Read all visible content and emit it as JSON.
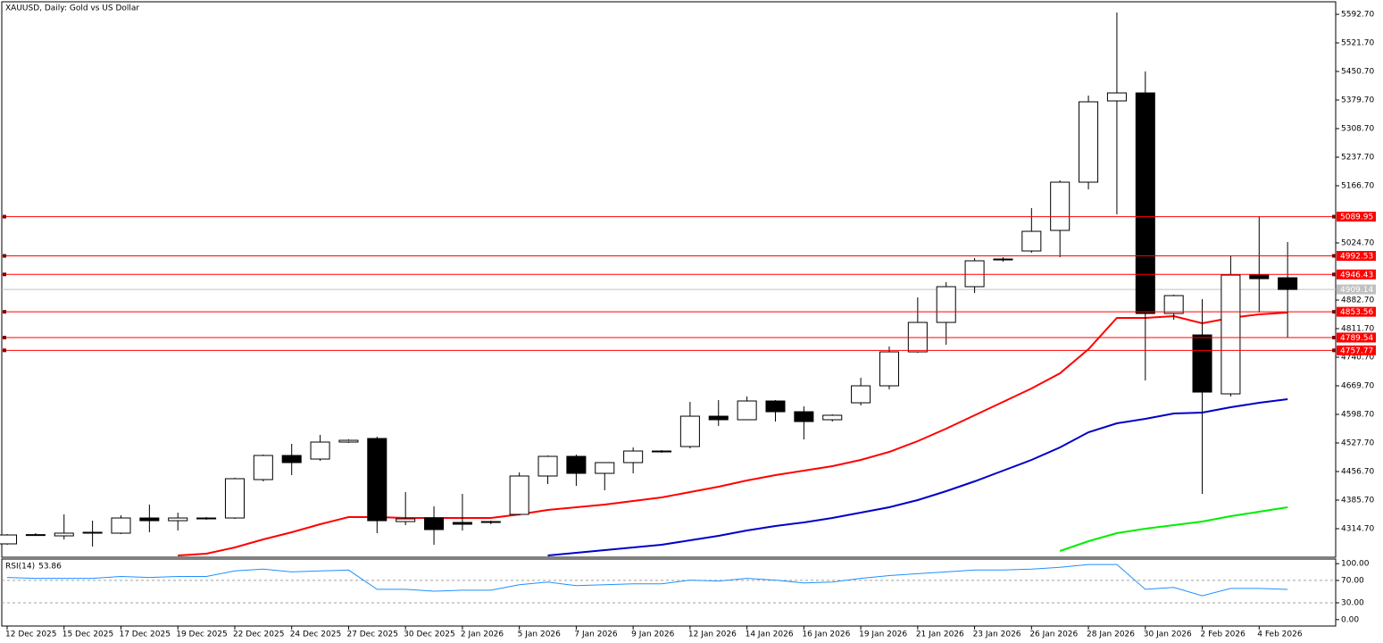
{
  "chart_data": [
    {
      "type": "candlestick",
      "title": "XAUUSD, Daily:  Gold vs US Dollar",
      "categories": [
        "12 Dec 2025",
        null,
        "15 Dec 2025",
        null,
        "17 Dec 2025",
        null,
        "19 Dec 2025",
        null,
        "22 Dec 2025",
        null,
        "24 Dec 2025",
        null,
        "27 Dec 2025",
        null,
        "30 Dec 2025",
        null,
        "2 Jan 2026",
        null,
        "5 Jan 2026",
        null,
        "7 Jan 2026",
        null,
        "9 Jan 2026",
        null,
        "12 Jan 2026",
        null,
        "14 Jan 2026",
        null,
        "16 Jan 2026",
        null,
        "19 Jan 2026",
        null,
        "21 Jan 2026",
        null,
        "23 Jan 2026",
        null,
        "26 Jan 2026",
        null,
        "28 Jan 2026",
        null,
        "30 Jan 2026",
        null,
        "2 Feb 2026",
        null,
        "4 Feb 2026",
        null
      ],
      "open": [
        4277.0,
        4299.1,
        4296.9,
        4304.0,
        4303.6,
        4341.3,
        4334.6,
        4340.5,
        4341.3,
        4436.7,
        4496.6,
        4487.7,
        4529.9,
        4538.8,
        4332.4,
        4341.3,
        4330.2,
        4331.5,
        4350.2,
        4445.6,
        4494.4,
        4452.2,
        4478.9,
        4507.0,
        4518.8,
        4594.2,
        4585.4,
        4632.0,
        4605.3,
        4585.4,
        4627.5,
        4669.7,
        4754.0,
        4827.2,
        4916.0,
        4983.5,
        5004.7,
        5055.8,
        5175.6,
        5377.5,
        5397.4,
        4849.4,
        4796.1,
        4649.7,
        4944.8,
        4938.2
      ],
      "high": [
        4301.4,
        4303.6,
        4350.2,
        4334.6,
        4347.9,
        4374.6,
        4354.6,
        4343.5,
        4441.1,
        4498.8,
        4525.5,
        4547.6,
        4536.6,
        4543.2,
        4405.6,
        4370.1,
        4401.2,
        4334.6,
        4454.5,
        4496.6,
        4498.8,
        4478.9,
        4516.6,
        4509.9,
        4629.7,
        4634.2,
        4643.1,
        4634.2,
        4618.6,
        4598.7,
        4689.6,
        4767.3,
        4889.3,
        4927.1,
        4987.0,
        4989.2,
        5111.2,
        5180.0,
        5390.8,
        5597.1,
        5450.7,
        4896.0,
        4884.9,
        4991.4,
        5091.2,
        5026.9
      ],
      "low": [
        4274.7,
        4296.9,
        4288.0,
        4270.3,
        4301.4,
        4305.8,
        4310.2,
        4336.9,
        4339.1,
        4432.3,
        4447.8,
        4483.3,
        4527.7,
        4303.6,
        4323.5,
        4274.7,
        4310.2,
        4325.8,
        4347.9,
        4425.6,
        4421.2,
        4410.1,
        4452.2,
        4503.3,
        4514.4,
        4569.8,
        4585.4,
        4580.9,
        4536.6,
        4580.9,
        4620.9,
        4660.8,
        4751.8,
        4771.7,
        4900.4,
        4978.1,
        5000.3,
        4989.2,
        5157.8,
        5095.7,
        4683.0,
        4833.9,
        4401.2,
        4643.1,
        4851.6,
        4789.5
      ],
      "close": [
        4299.1,
        4300.0,
        4303.6,
        4305.8,
        4341.3,
        4334.6,
        4341.3,
        4341.3,
        4438.9,
        4496.6,
        4478.9,
        4529.9,
        4534.3,
        4334.6,
        4339.1,
        4312.5,
        4325.8,
        4332.4,
        4445.6,
        4494.4,
        4452.2,
        4478.9,
        4507.7,
        4507.7,
        4594.2,
        4585.4,
        4632.0,
        4605.3,
        4580.9,
        4596.5,
        4669.7,
        4754.0,
        4827.2,
        4916.0,
        4980.3,
        4984.7,
        5053.5,
        5175.6,
        5375.3,
        5397.4,
        4849.4,
        4893.8,
        4654.1,
        4944.8,
        4935.9,
        4909.14
      ],
      "up_color": "#ffffff",
      "down_color": "#000000",
      "lines": [
        {
          "color": "#ff0000",
          "values": [
            null,
            null,
            null,
            null,
            null,
            null,
            4248.1,
            4252.5,
            4268.1,
            4288.0,
            4305.8,
            4325.8,
            4343.5,
            4343.5,
            4341.3,
            4341.3,
            4341.3,
            4341.3,
            4350.2,
            4361.3,
            4367.9,
            4374.6,
            4383.5,
            4392.3,
            4405.6,
            4419.0,
            4434.5,
            4447.8,
            4458.9,
            4470.0,
            4485.5,
            4505.5,
            4532.1,
            4563.2,
            4596.5,
            4629.7,
            4663.0,
            4700.7,
            4760.6,
            4838.3,
            4838.3,
            4842.7,
            4825.0,
            4838.3,
            4847.2,
            4851.6
          ]
        },
        {
          "color": "#0000c8",
          "values": [
            null,
            null,
            null,
            null,
            null,
            null,
            null,
            null,
            null,
            null,
            null,
            null,
            null,
            null,
            null,
            null,
            null,
            null,
            null,
            4248.1,
            4254.8,
            4261.4,
            4268.1,
            4274.7,
            4285.8,
            4296.9,
            4310.2,
            4321.3,
            4330.2,
            4341.3,
            4354.6,
            4367.9,
            4385.7,
            4407.9,
            4432.3,
            4458.9,
            4485.5,
            4516.6,
            4554.3,
            4576.5,
            4587.6,
            4600.9,
            4603.1,
            4616.4,
            4627.5,
            4636.4
          ]
        },
        {
          "color": "#00ee00",
          "values": [
            null,
            null,
            null,
            null,
            null,
            null,
            null,
            null,
            null,
            null,
            null,
            null,
            null,
            null,
            null,
            null,
            null,
            null,
            null,
            null,
            null,
            null,
            null,
            null,
            null,
            null,
            null,
            null,
            null,
            null,
            null,
            null,
            null,
            null,
            null,
            null,
            null,
            4259.2,
            4283.6,
            4303.6,
            4314.7,
            4323.5,
            4332.4,
            4345.7,
            4356.8,
            4367.9
          ]
        }
      ],
      "levels": [
        5089.95,
        4992.53,
        4946.43,
        4853.56,
        4789.54,
        4757.77
      ],
      "level_color": "#ff0000",
      "current_price": 4909.14,
      "current_price_color": "#c0c0c0",
      "ylim": [
        4243.7,
        5623.8
      ],
      "yticks": [
        {
          "value": 5592.7,
          "label": "5592.70"
        },
        {
          "value": 5521.7,
          "label": "5521.70"
        },
        {
          "value": 5450.7,
          "label": "5450.70"
        },
        {
          "value": 5379.7,
          "label": "5379.70"
        },
        {
          "value": 5308.7,
          "label": "5308.70"
        },
        {
          "value": 5237.7,
          "label": "5237.70"
        },
        {
          "value": 5166.7,
          "label": "5166.70"
        },
        {
          "value": 5024.7,
          "label": "5024.70"
        },
        {
          "value": 4882.7,
          "label": "4882.70"
        },
        {
          "value": 4811.7,
          "label": "4811.70"
        },
        {
          "value": 4740.7,
          "label": "4740.70"
        },
        {
          "value": 4669.7,
          "label": "4669.70"
        },
        {
          "value": 4598.7,
          "label": "4598.70"
        },
        {
          "value": 4527.7,
          "label": "4527.70"
        },
        {
          "value": 4456.7,
          "label": "4456.70"
        },
        {
          "value": 4385.7,
          "label": "4385.70"
        },
        {
          "value": 4314.7,
          "label": "4314.70"
        }
      ]
    },
    {
      "type": "line",
      "title": "RSI(14)",
      "color": "#1e90ff",
      "values": [
        75.4,
        73.8,
        73.8,
        73.8,
        77.0,
        75.4,
        77.0,
        77.0,
        86.9,
        90.2,
        85.2,
        86.9,
        88.5,
        54.1,
        54.1,
        50.8,
        52.5,
        52.5,
        62.3,
        67.2,
        60.7,
        62.3,
        63.9,
        63.9,
        70.5,
        68.9,
        73.8,
        70.5,
        65.6,
        67.2,
        73.8,
        78.7,
        82.0,
        85.2,
        88.5,
        88.5,
        90.2,
        93.4,
        98.4,
        98.4,
        54.1,
        57.4,
        42.6,
        55.7,
        55.7,
        53.86
      ],
      "levels": [
        70,
        30
      ],
      "ylim": [
        -11.5,
        108.2
      ],
      "yticks": [
        {
          "value": 100,
          "label": "100.00"
        },
        {
          "value": 70,
          "label": "70.00"
        },
        {
          "value": 30,
          "label": "30.00"
        },
        {
          "value": 0,
          "label": "0.00"
        }
      ]
    }
  ]
}
